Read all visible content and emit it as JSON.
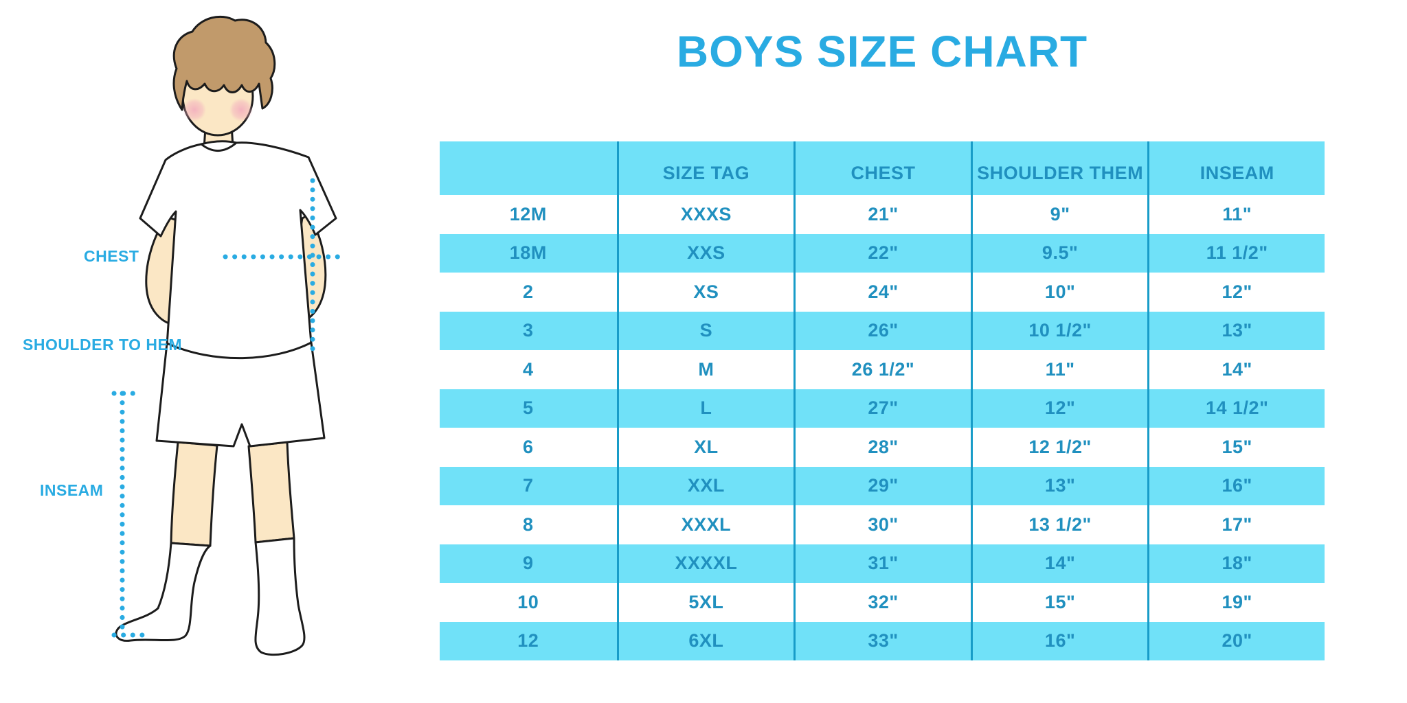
{
  "title": "BOYS SIZE CHART",
  "figure": {
    "labels": {
      "chest": "CHEST",
      "shoulder_to_hem": "SHOULDER TO HEM",
      "inseam": "INSEAM"
    }
  },
  "colors": {
    "accent_blue": "#29ABE2",
    "stripe_blue": "#70E1F8",
    "separator_blue": "#189CC8",
    "table_text_blue": "#2090BF",
    "skin_tone": "#FBE7C5",
    "hair_brown": "#C19A6B",
    "blush_pink": "#F3AEBE",
    "outline_black": "#1C1C1C"
  },
  "chart_data": {
    "type": "table",
    "title": "BOYS SIZE CHART",
    "columns": [
      "",
      "SIZE TAG",
      "CHEST",
      "SHOULDER THEM",
      "INSEAM"
    ],
    "rows": [
      {
        "size": "12M",
        "tag": "XXXS",
        "chest": "21\"",
        "shoulder": "9\"",
        "inseam": "11\""
      },
      {
        "size": "18M",
        "tag": "XXS",
        "chest": "22\"",
        "shoulder": "9.5\"",
        "inseam": "11 1/2\""
      },
      {
        "size": "2",
        "tag": "XS",
        "chest": "24\"",
        "shoulder": "10\"",
        "inseam": "12\""
      },
      {
        "size": "3",
        "tag": "S",
        "chest": "26\"",
        "shoulder": "10 1/2\"",
        "inseam": "13\""
      },
      {
        "size": "4",
        "tag": "M",
        "chest": "26 1/2\"",
        "shoulder": "11\"",
        "inseam": "14\""
      },
      {
        "size": "5",
        "tag": "L",
        "chest": "27\"",
        "shoulder": "12\"",
        "inseam": "14 1/2\""
      },
      {
        "size": "6",
        "tag": "XL",
        "chest": "28\"",
        "shoulder": "12 1/2\"",
        "inseam": "15\""
      },
      {
        "size": "7",
        "tag": "XXL",
        "chest": "29\"",
        "shoulder": "13\"",
        "inseam": "16\""
      },
      {
        "size": "8",
        "tag": "XXXL",
        "chest": "30\"",
        "shoulder": "13 1/2\"",
        "inseam": "17\""
      },
      {
        "size": "9",
        "tag": "XXXXL",
        "chest": "31\"",
        "shoulder": "14\"",
        "inseam": "18\""
      },
      {
        "size": "10",
        "tag": "5XL",
        "chest": "32\"",
        "shoulder": "15\"",
        "inseam": "19\""
      },
      {
        "size": "12",
        "tag": "6XL",
        "chest": "33\"",
        "shoulder": "16\"",
        "inseam": "20\""
      }
    ]
  }
}
